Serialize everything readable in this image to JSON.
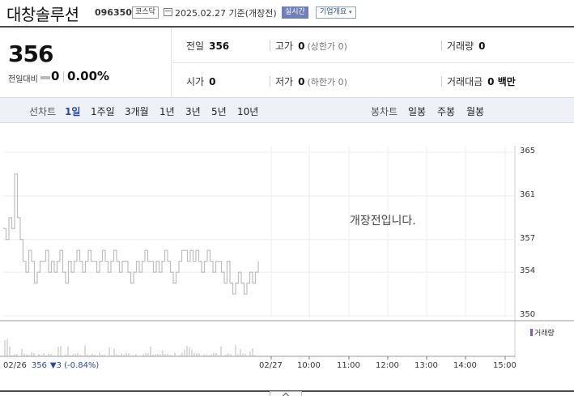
{
  "header": {
    "name": "대창솔루션",
    "code": "096350",
    "market": "코스닥",
    "date": "2025.02.27 기준(개장전)",
    "realtime": "실시간",
    "company_info": "기업개요",
    "company_info_arrow": "▾"
  },
  "summary": {
    "price": "356",
    "change_label": "전일대비",
    "change": "0",
    "change_pct": "0.00%",
    "prev_label": "전일",
    "prev": "356",
    "high_label": "고가",
    "high": "0",
    "high_sub": "(상한가 0)",
    "volume_label": "거래량",
    "volume": "0",
    "open_label": "시가",
    "open": "0",
    "low_label": "저가",
    "low": "0",
    "low_sub": "(하한가 0)",
    "amount_label": "거래대금",
    "amount": "0 백만"
  },
  "toolbar": {
    "line_label": "선차트",
    "line_periods": [
      "1일",
      "1주일",
      "3개월",
      "1년",
      "3년",
      "5년",
      "10년"
    ],
    "candle_label": "봉차트",
    "candle_periods": [
      "일봉",
      "주봉",
      "월봉"
    ]
  },
  "chart": {
    "notice": "개장전입니다.",
    "volume_legend": "거래량",
    "legend_date": "02/26",
    "legend_price": "356",
    "legend_change": "▼3 (-0.84%)",
    "colors": {
      "line": "#bdbdbd",
      "grid": "#ececec",
      "volume": "#b9b9b9",
      "accent": "#2a4aa0"
    }
  },
  "chart_data": {
    "type": "line",
    "x_labels": [
      "02/26",
      "02/27",
      "10:00",
      "11:00",
      "12:00",
      "13:00",
      "14:00",
      "15:00"
    ],
    "y_ticks": [
      365,
      361,
      357,
      354,
      350
    ],
    "ylim": [
      350,
      365
    ],
    "series": [
      {
        "values": [
          358,
          357,
          359,
          358,
          363,
          359,
          357,
          355,
          354,
          356,
          355,
          353,
          354,
          355,
          355,
          356,
          354,
          355,
          354,
          355,
          356,
          354,
          353,
          355,
          354,
          355,
          356,
          355,
          354,
          355,
          356,
          355,
          355,
          354,
          355,
          356,
          355,
          354,
          355,
          356,
          355,
          354,
          355,
          355,
          354,
          353,
          354,
          355,
          354,
          355,
          356,
          355,
          355,
          354,
          355,
          354,
          355,
          356,
          355,
          354,
          353,
          354,
          355,
          356,
          356,
          355,
          356,
          355,
          356,
          355,
          354,
          355,
          356,
          355,
          354,
          355,
          355,
          354,
          353,
          355,
          353,
          352,
          353,
          354,
          353,
          352,
          353,
          354,
          353,
          354,
          355
        ]
      }
    ]
  }
}
